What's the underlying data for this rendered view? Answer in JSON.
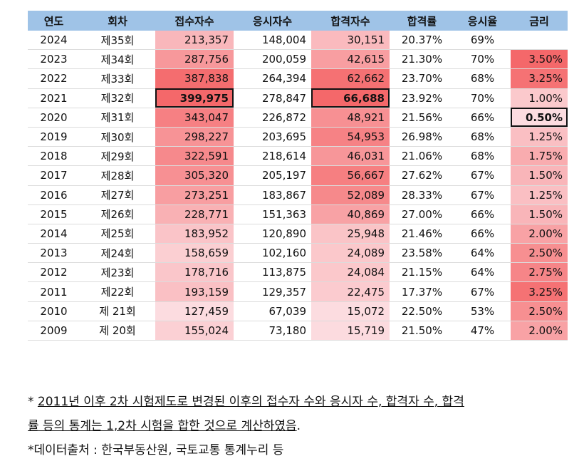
{
  "headers": [
    "연도",
    "회차",
    "접수자수",
    "응시자수",
    "합격자수",
    "합격률",
    "응시율",
    "금리"
  ],
  "rows": [
    {
      "year": "2024",
      "round": "제35회",
      "applicants": "213,357",
      "examinees": "148,004",
      "passers": "30,151",
      "pass_rate": "20.37%",
      "exam_rate": "69%",
      "rate": ""
    },
    {
      "year": "2023",
      "round": "제34회",
      "applicants": "287,756",
      "examinees": "200,059",
      "passers": "42,615",
      "pass_rate": "21.30%",
      "exam_rate": "70%",
      "rate": "3.50%"
    },
    {
      "year": "2022",
      "round": "제33회",
      "applicants": "387,838",
      "examinees": "264,394",
      "passers": "62,662",
      "pass_rate": "23.70%",
      "exam_rate": "68%",
      "rate": "3.25%"
    },
    {
      "year": "2021",
      "round": "제32회",
      "applicants": "399,975",
      "examinees": "278,847",
      "passers": "66,688",
      "pass_rate": "23.92%",
      "exam_rate": "70%",
      "rate": "1.00%"
    },
    {
      "year": "2020",
      "round": "제31회",
      "applicants": "343,047",
      "examinees": "226,872",
      "passers": "48,921",
      "pass_rate": "21.56%",
      "exam_rate": "66%",
      "rate": "0.50%"
    },
    {
      "year": "2019",
      "round": "제30회",
      "applicants": "298,227",
      "examinees": "203,695",
      "passers": "54,953",
      "pass_rate": "26.98%",
      "exam_rate": "68%",
      "rate": "1.25%"
    },
    {
      "year": "2018",
      "round": "제29회",
      "applicants": "322,591",
      "examinees": "218,614",
      "passers": "46,031",
      "pass_rate": "21.06%",
      "exam_rate": "68%",
      "rate": "1.75%"
    },
    {
      "year": "2017",
      "round": "제28회",
      "applicants": "305,320",
      "examinees": "205,197",
      "passers": "56,667",
      "pass_rate": "27.62%",
      "exam_rate": "67%",
      "rate": "1.50%"
    },
    {
      "year": "2016",
      "round": "제27회",
      "applicants": "273,251",
      "examinees": "183,867",
      "passers": "52,089",
      "pass_rate": "28.33%",
      "exam_rate": "67%",
      "rate": "1.25%"
    },
    {
      "year": "2015",
      "round": "제26회",
      "applicants": "228,771",
      "examinees": "151,363",
      "passers": "40,869",
      "pass_rate": "27.00%",
      "exam_rate": "66%",
      "rate": "1.50%"
    },
    {
      "year": "2014",
      "round": "제25회",
      "applicants": "183,952",
      "examinees": "120,890",
      "passers": "25,948",
      "pass_rate": "21.46%",
      "exam_rate": "66%",
      "rate": "2.00%"
    },
    {
      "year": "2013",
      "round": "제24회",
      "applicants": "158,659",
      "examinees": "102,160",
      "passers": "24,089",
      "pass_rate": "23.58%",
      "exam_rate": "64%",
      "rate": "2.50%"
    },
    {
      "year": "2012",
      "round": "제23회",
      "applicants": "178,716",
      "examinees": "113,875",
      "passers": "24,084",
      "pass_rate": "21.15%",
      "exam_rate": "64%",
      "rate": "2.75%"
    },
    {
      "year": "2011",
      "round": "제22회",
      "applicants": "193,159",
      "examinees": "129,357",
      "passers": "22,475",
      "pass_rate": "17.37%",
      "exam_rate": "67%",
      "rate": "3.25%"
    },
    {
      "year": "2010",
      "round": "제 21회",
      "applicants": "127,459",
      "examinees": "67,039",
      "passers": "15,072",
      "pass_rate": "22.50%",
      "exam_rate": "53%",
      "rate": "2.50%"
    },
    {
      "year": "2009",
      "round": "제 20회",
      "applicants": "155,024",
      "examinees": "73,180",
      "passers": "15,719",
      "pass_rate": "21.50%",
      "exam_rate": "47%",
      "rate": "2.00%"
    }
  ],
  "highlights": {
    "applicants_max_year": "2021",
    "passers_max_year": "2021",
    "rate_min_year": "2020"
  },
  "notes": {
    "footnote_prefix": "* ",
    "footnote_underlined_1": "2011년 이후 2차 시험제도로 변경된 이후의 접수자 수와 응시자 수, 합격자 수, 합격",
    "footnote_underlined_2": "률 등의 통계는 1,2차 시험을 합한 것으로 계산하였음",
    "footnote_end": ".",
    "source": "*데이터출처 : 한국부동산원, 국토교통 통계누리 등"
  }
}
